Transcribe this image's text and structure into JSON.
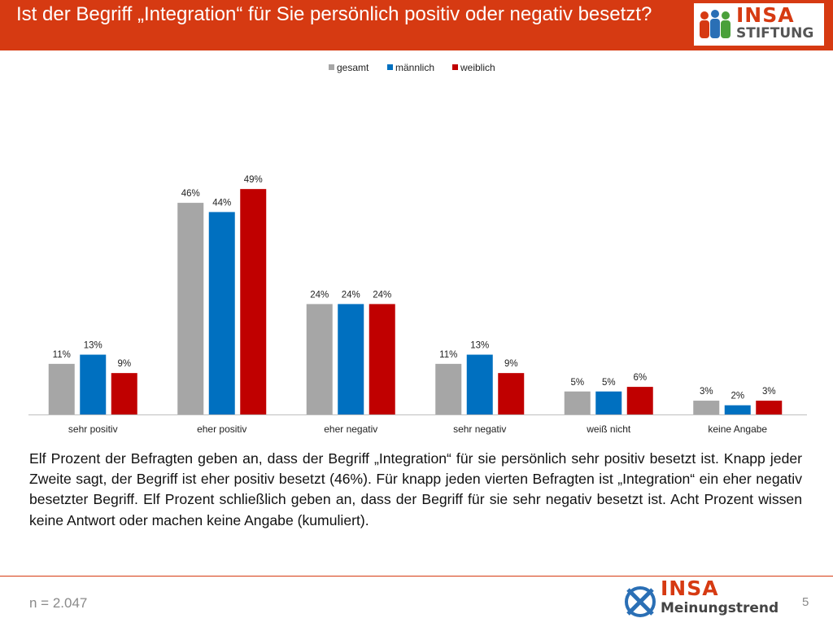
{
  "slide": {
    "title": "Ist der Begriff „Integration“ für Sie persönlich positiv oder negativ besetzt?",
    "logo_top": {
      "word1": "INSA",
      "word2": "STIFTUNG"
    },
    "body_text": "Elf Prozent der Befragten geben an, dass der Begriff „Integration“ für sie persönlich sehr positiv besetzt ist. Knapp jeder Zweite sagt, der Begriff ist eher positiv besetzt (46%). Für knapp jeden vierten Befragten ist „Integration“ ein eher negativ besetzter Begriff. Elf Prozent schließlich geben an, dass der Begriff für sie sehr negativ besetzt ist. Acht Prozent wissen keine Antwort oder machen keine Angabe (kumuliert).",
    "sample_size": "n = 2.047",
    "logo_bottom": {
      "word1": "INSA",
      "word2": "Meinungstrend"
    },
    "page_number": "5"
  },
  "colors": {
    "header": "#d63a12",
    "gesamt": "#a6a6a6",
    "maennlich": "#0070c0",
    "weiblich": "#c00000"
  },
  "chart_data": {
    "type": "bar",
    "title": "",
    "xlabel": "",
    "ylabel": "",
    "ylim": [
      0,
      50
    ],
    "grid": false,
    "legend_position": "top",
    "categories": [
      "sehr positiv",
      "eher positiv",
      "eher negativ",
      "sehr negativ",
      "weiß nicht",
      "keine Angabe"
    ],
    "series": [
      {
        "name": "gesamt",
        "color": "#a6a6a6",
        "values": [
          11,
          46,
          24,
          11,
          5,
          3
        ],
        "labels": [
          "11%",
          "46%",
          "24%",
          "11%",
          "5%",
          "3%"
        ]
      },
      {
        "name": "männlich",
        "color": "#0070c0",
        "values": [
          13,
          44,
          24,
          13,
          5,
          2
        ],
        "labels": [
          "13%",
          "44%",
          "24%",
          "13%",
          "5%",
          "2%"
        ]
      },
      {
        "name": "weiblich",
        "color": "#c00000",
        "values": [
          9,
          49,
          24,
          9,
          6,
          3
        ],
        "labels": [
          "9%",
          "49%",
          "24%",
          "9%",
          "6%",
          "3%"
        ]
      }
    ]
  }
}
